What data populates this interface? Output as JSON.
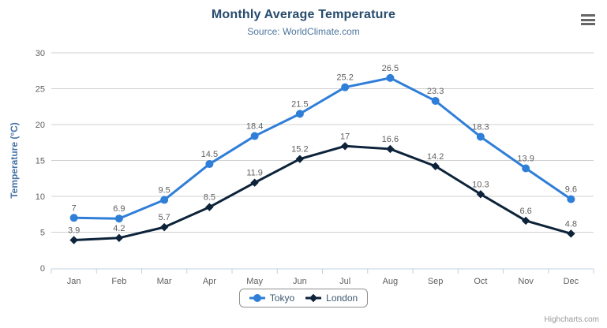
{
  "chart": {
    "title": "Monthly Average Temperature",
    "subtitle": "Source: WorldClimate.com",
    "credit": "Highcharts.com"
  },
  "chart_data": {
    "type": "line",
    "title": "Monthly Average Temperature",
    "subtitle": "Source: WorldClimate.com",
    "xlabel": "",
    "ylabel": "Temperature (°C)",
    "categories": [
      "Jan",
      "Feb",
      "Mar",
      "Apr",
      "May",
      "Jun",
      "Jul",
      "Aug",
      "Sep",
      "Oct",
      "Nov",
      "Dec"
    ],
    "series": [
      {
        "name": "Tokyo",
        "marker": "circle",
        "color": "#2f7ed8",
        "values": [
          7,
          6.9,
          9.5,
          14.5,
          18.4,
          21.5,
          25.2,
          26.5,
          23.3,
          18.3,
          13.9,
          9.6
        ]
      },
      {
        "name": "London",
        "marker": "diamond",
        "color": "#0d233a",
        "values": [
          3.9,
          4.2,
          5.7,
          8.5,
          11.9,
          15.2,
          17,
          16.6,
          14.2,
          10.3,
          6.6,
          4.8
        ]
      }
    ],
    "ylim": [
      0,
      30
    ],
    "yticks": [
      0,
      5,
      10,
      15,
      20,
      25,
      30
    ],
    "grid": true,
    "data_labels": true,
    "legend_position": "bottom",
    "colors": {
      "grid_line": "#d0d0d0",
      "axis_line": "#c0d0e0",
      "tick": "#c0d0e0",
      "axis_label": "#606060",
      "data_label": "#606060",
      "axis_title": "#4572a7",
      "title": "#274b6d",
      "subtitle": "#4d759e",
      "legend_text": "#3E576F"
    }
  }
}
